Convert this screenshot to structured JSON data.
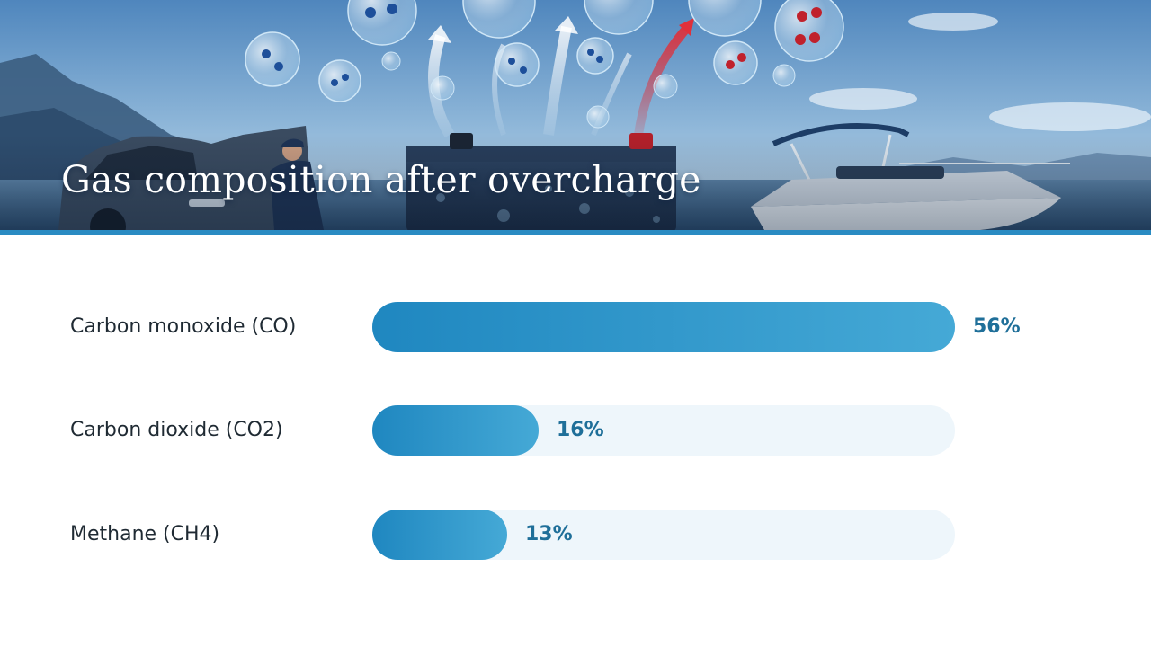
{
  "header": {
    "title": "Gas composition after overcharge"
  },
  "colors": {
    "bar_start": "#1f87c0",
    "bar_end": "#45a9d6",
    "track": "#eef6fb",
    "value_text": "#1f6f99",
    "label_text": "#1f2a33",
    "accent_rule": "#2a8bc2"
  },
  "banner_icons": [
    "car-icon",
    "mechanic-icon",
    "battery-icon",
    "gas-molecule-icon",
    "boat-icon",
    "mountain-icon"
  ],
  "chart_data": {
    "type": "bar",
    "orientation": "horizontal",
    "title": "Gas composition after overcharge",
    "categories": [
      "Carbon monoxide (CO)",
      "Carbon dioxide (CO2)",
      "Methane (CH4)"
    ],
    "values": [
      56,
      16,
      13
    ],
    "value_labels": [
      "56%",
      "16%",
      "13%"
    ],
    "unit": "%",
    "xlim": [
      0,
      56
    ],
    "grid": false,
    "legend": "none"
  }
}
